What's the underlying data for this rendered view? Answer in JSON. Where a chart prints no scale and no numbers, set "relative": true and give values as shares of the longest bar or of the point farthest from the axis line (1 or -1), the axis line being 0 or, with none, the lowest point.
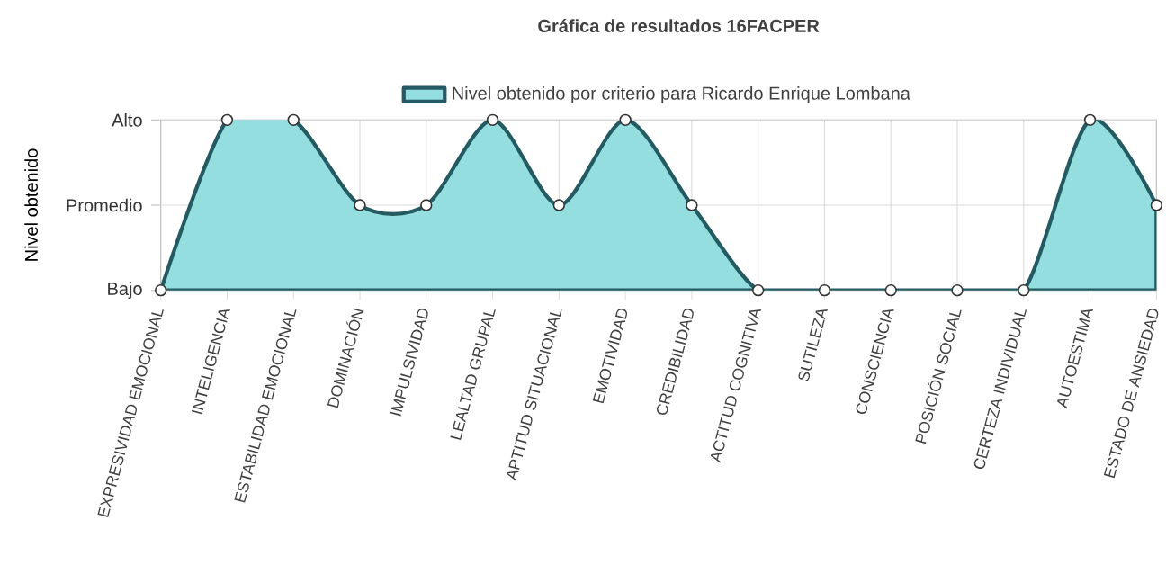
{
  "chart_data": {
    "type": "area",
    "title": "Gráfica de resultados 16FACPER",
    "ylabel": "Nivel obtenido",
    "relative": true,
    "categories": [
      "EXPRESIVIDAD EMOCIONAL",
      "INTELIGENCIA",
      "ESTABILIDAD EMOCIONAL",
      "DOMINACIÓN",
      "IMPULSIVIDAD",
      "LEALTAD GRUPAL",
      "APTITUD SITUACIONAL",
      "EMOTIVIDAD",
      "CREDIBILIDAD",
      "ACTITUD COGNITIVA",
      "SUTILEZA",
      "CONSCIENCIA",
      "POSICIÓN SOCIAL",
      "CERTEZA INDIVIDUAL",
      "AUTOESTIMA",
      "ESTADO DE ANSIEDAD"
    ],
    "series": [
      {
        "name": "Nivel obtenido por criterio para Ricardo Enrique Lombana",
        "color": "#245a61",
        "values": [
          0,
          1,
          1,
          0.5,
          0.5,
          1,
          0.5,
          1,
          0.5,
          0,
          0,
          0,
          0,
          0,
          1,
          0.5
        ]
      }
    ],
    "ref_lines": [
      {
        "axis": "y",
        "value": 0,
        "label": "Bajo"
      },
      {
        "axis": "y",
        "value": 0.5,
        "label": "Promedio"
      },
      {
        "axis": "y",
        "value": 1,
        "label": "Alto"
      }
    ],
    "grid": "x",
    "legend": "top",
    "marker": "circle",
    "line_style": "solid"
  }
}
